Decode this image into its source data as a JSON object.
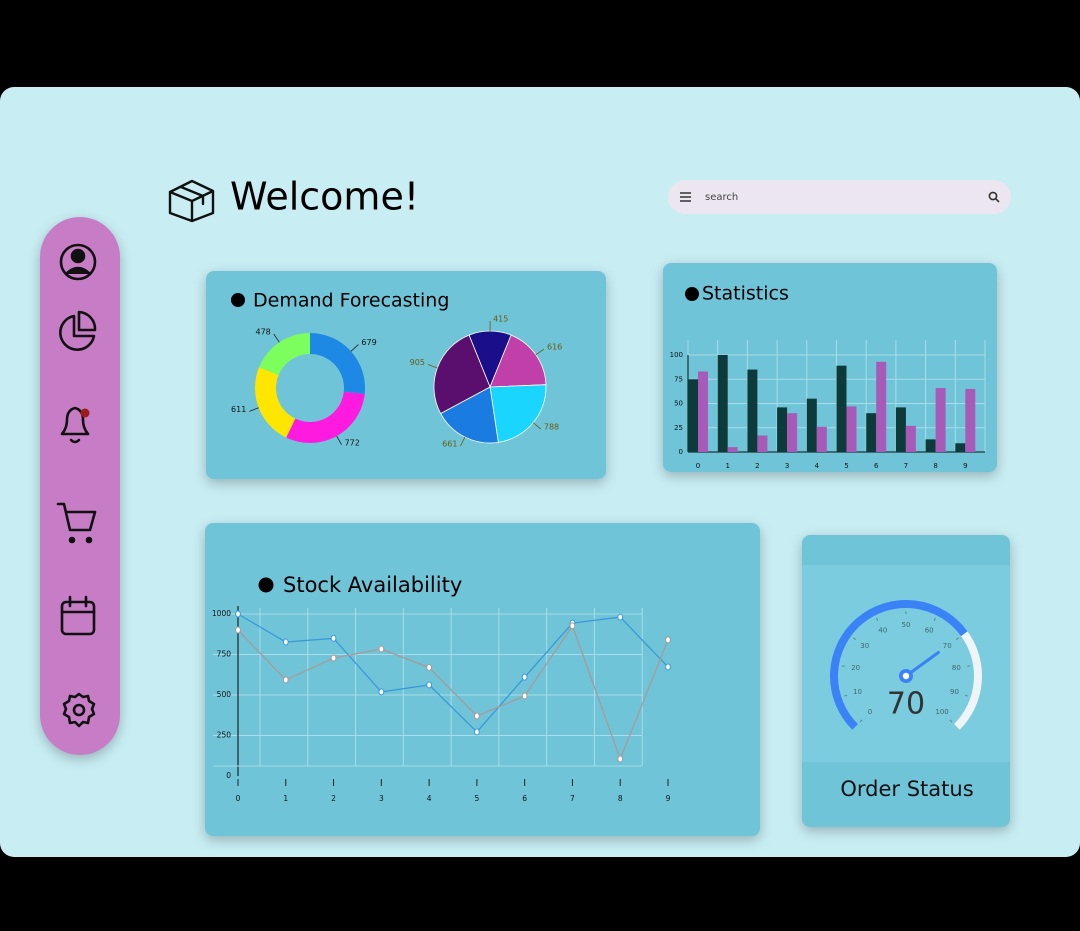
{
  "header": {
    "title": "Welcome!",
    "search_placeholder": "search"
  },
  "chart_data": [
    {
      "type": "donut",
      "title": "Demand Forecasting",
      "values": [
        679,
        772,
        611,
        478
      ],
      "colors": [
        "#1e88e5",
        "#ff1ae0",
        "#ffe600",
        "#7cff5c"
      ]
    },
    {
      "type": "pie",
      "values": [
        415,
        616,
        788,
        661,
        905
      ],
      "colors": [
        "#1a0f8a",
        "#c13fa8",
        "#1ad6ff",
        "#1a7be0",
        "#5a0f6e"
      ]
    },
    {
      "type": "bar",
      "title": "Statistics",
      "categories": [
        "0",
        "1",
        "2",
        "3",
        "4",
        "5",
        "6",
        "7",
        "8",
        "9"
      ],
      "series": [
        {
          "color": "#0d3b3b",
          "values": [
            75,
            100,
            85,
            46,
            55,
            89,
            40,
            46,
            13,
            9
          ]
        },
        {
          "color": "#a85ab8",
          "values": [
            83,
            5,
            17,
            40,
            26,
            47,
            93,
            27,
            66,
            65
          ]
        }
      ],
      "ylim": [
        0,
        100
      ],
      "yticks": [
        0,
        25,
        50,
        75,
        100
      ],
      "grid": true
    },
    {
      "type": "line",
      "title": "Stock Availability",
      "x": [
        0,
        1,
        2,
        3,
        4,
        5,
        6,
        7,
        8,
        9
      ],
      "series": [
        {
          "color": "#3a9ad9",
          "values": [
            1000,
            827,
            850,
            519,
            562,
            272,
            610,
            944,
            981,
            673
          ]
        },
        {
          "color": "#a89a9a",
          "values": [
            901,
            593,
            728,
            784,
            670,
            370,
            494,
            927,
            105,
            840
          ]
        }
      ],
      "xlim": [
        0,
        9
      ],
      "xticks": [
        0,
        1,
        2,
        3,
        4,
        5,
        6,
        7,
        8,
        9
      ],
      "ylim": [
        0,
        1000
      ],
      "yticks": [
        0,
        250,
        500,
        750,
        1000
      ],
      "grid": true
    },
    {
      "type": "gauge",
      "title": "Order Status",
      "value": 70,
      "ylim": [
        0,
        100
      ],
      "yticks": [
        0,
        10,
        20,
        30,
        40,
        50,
        60,
        70,
        80,
        90,
        100
      ],
      "color": "#3b82f6",
      "track_color": "#eef4f8"
    }
  ]
}
